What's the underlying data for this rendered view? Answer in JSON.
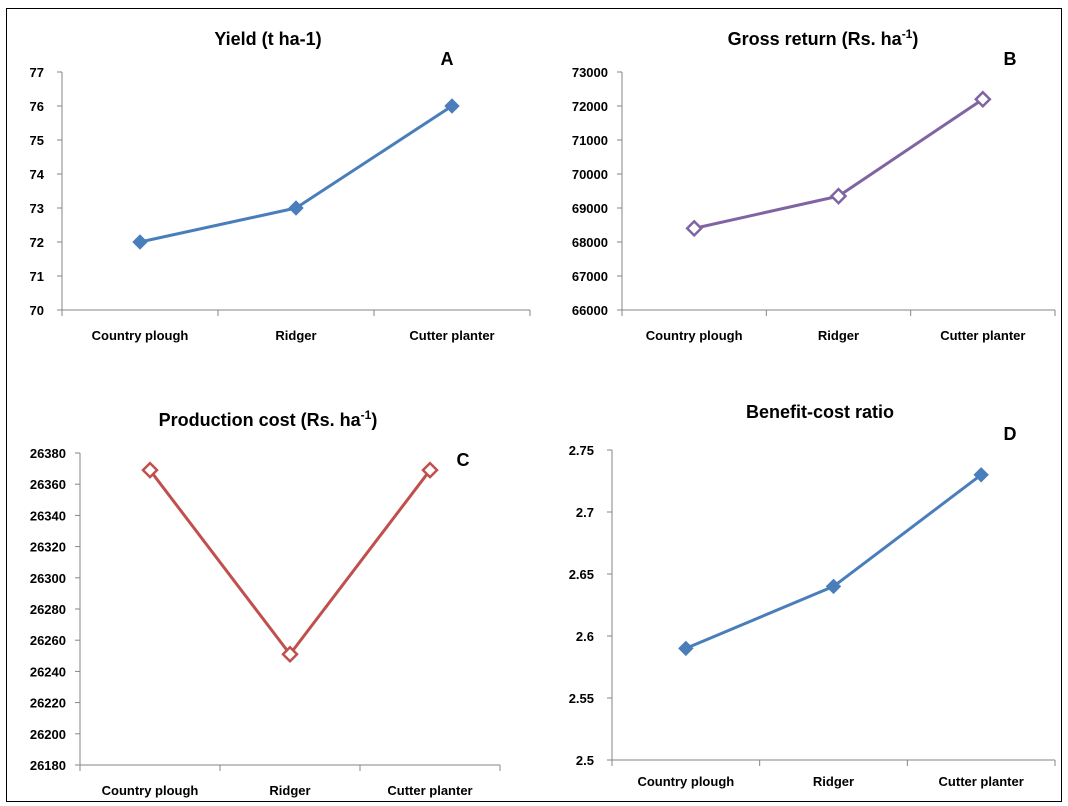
{
  "chart_data": [
    {
      "type": "line",
      "title": "Yield (t ha-1)",
      "panel_label": "A",
      "categories": [
        "Country plough",
        "Ridger",
        "Cutter planter"
      ],
      "series": [
        {
          "values": [
            72,
            73,
            76
          ],
          "color": "#4a7ebb",
          "marker": "filled-diamond"
        }
      ],
      "ylim": [
        70,
        77
      ],
      "yticks": [
        70,
        71,
        72,
        73,
        74,
        75,
        76,
        77
      ],
      "grid": false
    },
    {
      "type": "line",
      "title": "Gross return (Rs. ha",
      "title_sup": "-1",
      "title_end": ")",
      "panel_label": "B",
      "categories": [
        "Country plough",
        "Ridger",
        "Cutter planter"
      ],
      "series": [
        {
          "values": [
            68400,
            69350,
            72200
          ],
          "color": "#8064a2",
          "marker": "open-diamond"
        }
      ],
      "ylim": [
        66000,
        73000
      ],
      "yticks": [
        66000,
        67000,
        68000,
        69000,
        70000,
        71000,
        72000,
        73000
      ],
      "grid": false
    },
    {
      "type": "line",
      "title": "Production cost (Rs. ha",
      "title_sup": "-1",
      "title_end": ")",
      "panel_label": "C",
      "categories": [
        "Country plough",
        "Ridger",
        "Cutter planter"
      ],
      "series": [
        {
          "values": [
            26369,
            26251,
            26369
          ],
          "color": "#c0504d",
          "marker": "open-diamond"
        }
      ],
      "ylim": [
        26180,
        26380
      ],
      "yticks": [
        26180,
        26200,
        26220,
        26240,
        26260,
        26280,
        26300,
        26320,
        26340,
        26360,
        26380
      ],
      "grid": false
    },
    {
      "type": "line",
      "title": "Benefit-cost ratio",
      "panel_label": "D",
      "categories": [
        "Country plough",
        "Ridger",
        "Cutter planter"
      ],
      "series": [
        {
          "values": [
            2.59,
            2.64,
            2.73
          ],
          "color": "#4a7ebb",
          "marker": "filled-diamond"
        }
      ],
      "ylim": [
        2.5,
        2.75
      ],
      "yticks": [
        "2.5",
        "2.55",
        "2.6",
        "2.65",
        "2.7",
        "2.75"
      ],
      "grid": false
    }
  ]
}
